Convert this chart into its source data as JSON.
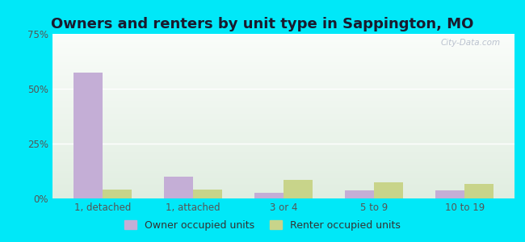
{
  "title": "Owners and renters by unit type in Sappington, MO",
  "categories": [
    "1, detached",
    "1, attached",
    "3 or 4",
    "5 to 9",
    "10 to 19"
  ],
  "owner_values": [
    57.5,
    10.0,
    2.5,
    3.5,
    3.5
  ],
  "renter_values": [
    4.0,
    4.0,
    8.5,
    7.5,
    6.5
  ],
  "owner_color": "#c4aed6",
  "renter_color": "#c8d48a",
  "ylim": [
    0,
    75
  ],
  "yticks": [
    0,
    25,
    50,
    75
  ],
  "ytick_labels": [
    "0%",
    "25%",
    "50%",
    "75%"
  ],
  "background_outer": "#00e8f8",
  "title_fontsize": 13,
  "axis_label_fontsize": 8.5,
  "legend_fontsize": 9,
  "watermark": "City-Data.com",
  "bar_width": 0.32
}
